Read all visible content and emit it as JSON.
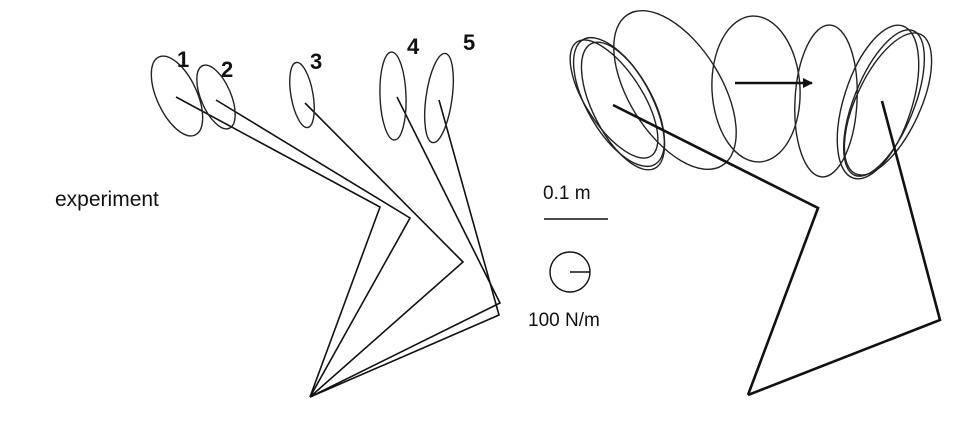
{
  "left_panel": {
    "caption": "experiment",
    "postures": [
      {
        "label": "1"
      },
      {
        "label": "2"
      },
      {
        "label": "3"
      },
      {
        "label": "4"
      },
      {
        "label": "5"
      }
    ]
  },
  "scale": {
    "length_label": "0.1 m",
    "stiffness_label": "100 N/m"
  }
}
